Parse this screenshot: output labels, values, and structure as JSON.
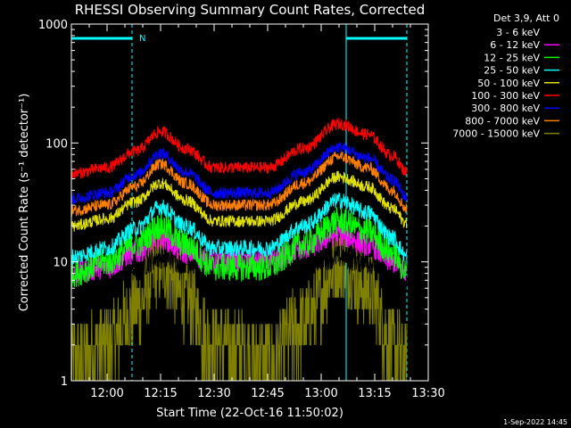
{
  "chart_data": {
    "type": "line",
    "title": "RHESSI Observing Summary Count Rates, Corrected",
    "xlabel": "Start Time (22-Oct-16 11:50:02)",
    "ylabel": "Corrected Count Rate (s⁻¹ detector⁻¹)",
    "y_scale": "log",
    "ylim": [
      1,
      1000
    ],
    "xlim": [
      "11:50",
      "13:30"
    ],
    "x_ticks": [
      "12:00",
      "12:15",
      "12:30",
      "12:45",
      "13:00",
      "13:15",
      "13:30"
    ],
    "y_ticks": [
      "1",
      "10",
      "100",
      "1000"
    ],
    "legend_header": "Det 3,9, Att 0",
    "legend_position": "top-right, outside plot",
    "colors": {
      "background": "#000000",
      "axes": "#ffffff",
      "markers": "#00ffff"
    },
    "series": [
      {
        "name": "3 - 6 keV",
        "color": "#000000",
        "x": [
          "11:50",
          "12:00",
          "12:08",
          "12:15",
          "12:22",
          "12:30",
          "12:45",
          "12:55",
          "13:05",
          "13:13",
          "13:20",
          "13:24"
        ],
        "y": [
          6,
          7,
          9,
          11,
          10,
          9,
          9,
          10,
          11,
          10,
          8,
          7
        ]
      },
      {
        "name": "6 - 12 keV",
        "color": "#ff00ff",
        "x": [
          "11:50",
          "12:00",
          "12:08",
          "12:15",
          "12:22",
          "12:30",
          "12:45",
          "12:55",
          "13:05",
          "13:13",
          "13:20",
          "13:24"
        ],
        "y": [
          8,
          9,
          12,
          16,
          12,
          10,
          10,
          13,
          17,
          14,
          10,
          8
        ]
      },
      {
        "name": "12 - 25 keV",
        "color": "#00ff00",
        "x": [
          "11:50",
          "12:00",
          "12:08",
          "12:15",
          "12:22",
          "12:30",
          "12:45",
          "12:55",
          "13:05",
          "13:13",
          "13:20",
          "13:24"
        ],
        "y": [
          8,
          10,
          14,
          20,
          14,
          9,
          9,
          14,
          22,
          18,
          12,
          8
        ]
      },
      {
        "name": "25 - 50 keV",
        "color": "#00ffff",
        "x": [
          "11:50",
          "12:00",
          "12:08",
          "12:15",
          "12:22",
          "12:30",
          "12:45",
          "12:55",
          "13:05",
          "13:13",
          "13:20",
          "13:24"
        ],
        "y": [
          11,
          13,
          19,
          29,
          20,
          13,
          13,
          20,
          33,
          26,
          16,
          11
        ]
      },
      {
        "name": "50 - 100 keV",
        "color": "#e0e000",
        "x": [
          "11:50",
          "12:00",
          "12:08",
          "12:15",
          "12:22",
          "12:30",
          "12:45",
          "12:55",
          "13:05",
          "13:13",
          "13:20",
          "13:24"
        ],
        "y": [
          20,
          23,
          32,
          46,
          33,
          22,
          22,
          32,
          52,
          43,
          28,
          21
        ]
      },
      {
        "name": "100 - 300 keV",
        "color": "#ff0000",
        "x": [
          "11:50",
          "12:00",
          "12:08",
          "12:15",
          "12:22",
          "12:30",
          "12:45",
          "12:55",
          "13:05",
          "13:13",
          "13:20",
          "13:24"
        ],
        "y": [
          55,
          62,
          85,
          125,
          90,
          62,
          62,
          90,
          145,
          118,
          78,
          57
        ]
      },
      {
        "name": "300 - 800 keV",
        "color": "#0000ff",
        "x": [
          "11:50",
          "12:00",
          "12:08",
          "12:15",
          "12:22",
          "12:30",
          "12:45",
          "12:55",
          "13:05",
          "13:13",
          "13:20",
          "13:24"
        ],
        "y": [
          34,
          38,
          54,
          82,
          57,
          38,
          38,
          57,
          92,
          75,
          49,
          35
        ]
      },
      {
        "name": "800 - 7000 keV",
        "color": "#ff8000",
        "x": [
          "11:50",
          "12:00",
          "12:08",
          "12:15",
          "12:22",
          "12:30",
          "12:45",
          "12:55",
          "13:05",
          "13:13",
          "13:20",
          "13:24"
        ],
        "y": [
          27,
          30,
          43,
          67,
          46,
          30,
          30,
          46,
          77,
          62,
          40,
          28
        ]
      },
      {
        "name": "7000 - 15000 keV",
        "color": "#808000",
        "x": [
          "11:50",
          "12:00",
          "12:08",
          "12:15",
          "12:22",
          "12:30",
          "12:45",
          "12:55",
          "13:05",
          "13:13",
          "13:20",
          "13:24"
        ],
        "y": [
          1.5,
          2,
          4,
          10,
          5,
          2,
          1.5,
          3,
          10,
          6,
          2,
          1.5
        ]
      }
    ],
    "markers": {
      "vertical_lines": [
        {
          "x": "11:50",
          "style": "solid"
        },
        {
          "x": "12:07",
          "style": "dashed"
        },
        {
          "x": "13:07",
          "style": "solid"
        },
        {
          "x": "13:24",
          "style": "dashed"
        }
      ],
      "bars": [
        {
          "x_start": "11:50",
          "x_end": "12:07",
          "label": ""
        },
        {
          "x_start": "13:07",
          "x_end": "13:24",
          "label": ""
        }
      ],
      "text": [
        {
          "x": "12:09",
          "label": "N"
        }
      ]
    },
    "timestamp": "1-Sep-2022 14:45"
  }
}
